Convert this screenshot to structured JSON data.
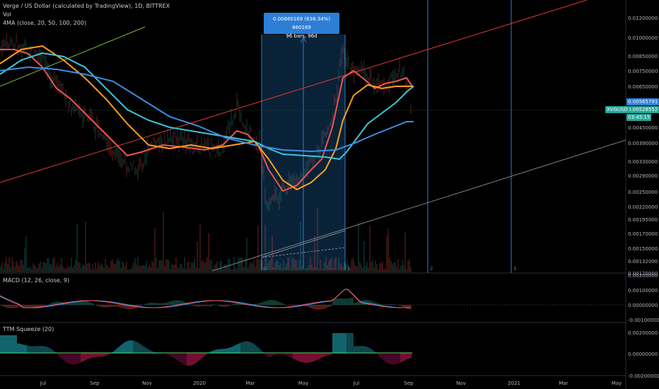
{
  "header": {
    "symbol": "Verge / US Dollar (calculated by TradingView), 1D, BITTREX",
    "vol_label": "Vol",
    "ma_label": "4MA (close, 20, 50, 100, 200)"
  },
  "tooltip": {
    "line1": "0.00860169 (638.34%) 860169",
    "line2": "96 bars, 96d"
  },
  "price_axis": {
    "ticks": [
      "0.01200000",
      "0.01000000",
      "0.00850000",
      "0.00750000",
      "0.00650000",
      "0.00450000",
      "0.00390000",
      "0.00330000",
      "0.00290000",
      "0.00250000",
      "0.00220000",
      "0.00195000",
      "0.00170000",
      "0.00150000",
      "0.00132000",
      "0.00120000"
    ],
    "price_tag_blue": "0.00565791",
    "price_tag_green": "0.00528552",
    "countdown": "03:45:15",
    "symbol_tag": "XVGUSD"
  },
  "macd": {
    "label": "MACD (12, 26, close, 9)",
    "ticks": [
      "0.00200000",
      "0.00100000",
      "0.00000000",
      "-0.00100000"
    ]
  },
  "ttm": {
    "label": "TTM Squeeze (20)",
    "ticks": [
      "0.00200000",
      "0.00000000",
      "-0.00200000"
    ]
  },
  "time_axis": {
    "labels": [
      "Jul",
      "Sep",
      "Nov",
      "2020",
      "Mar",
      "May",
      "Jul",
      "Sep",
      "Nov",
      "2021",
      "Mar",
      "May"
    ]
  },
  "fib_time": {
    "labels": [
      "0",
      "1",
      "2",
      "3"
    ]
  },
  "colors": {
    "up": "#26a69a",
    "down": "#ef5350",
    "ma20": "#ef5350",
    "ma50": "#ff9f1a",
    "ma100": "#3ec4d6",
    "ma200": "#3b8ee8",
    "channel_red": "#e53935",
    "channel_green": "#7cb342",
    "fib": "#2d7fd6"
  }
}
